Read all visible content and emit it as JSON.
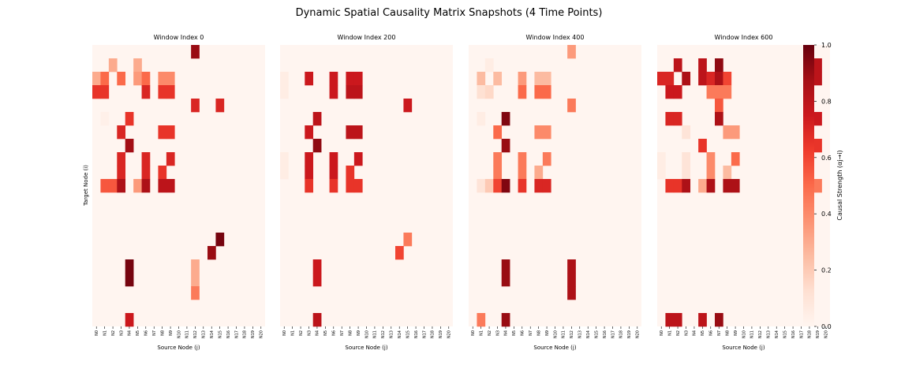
{
  "chart_data": {
    "type": "heatmap",
    "title": "Dynamic Spatial Causality Matrix Snapshots (4 Time Points)",
    "colormap": "Reds",
    "vmin": 0.0,
    "vmax": 1.0,
    "xticks": [
      "N0",
      "N1",
      "N2",
      "N3",
      "N4",
      "N5",
      "N6",
      "N7",
      "N8",
      "N9",
      "N10",
      "N11",
      "N12",
      "N13",
      "N14",
      "N15",
      "N16",
      "N17",
      "N18",
      "N19",
      "N20"
    ],
    "n_rows": 21,
    "xlabel": "Source Node (j)",
    "ylabel": "Target Node (i)",
    "colorbar": {
      "label": "Causal Strength (αj→i)",
      "ticks": [
        "0.0",
        "0.2",
        "0.4",
        "0.6",
        "0.8",
        "1.0"
      ]
    },
    "panels": [
      {
        "title": "Window Index 0",
        "cells": [
          [
            0,
            12,
            0.9
          ],
          [
            1,
            2,
            0.3
          ],
          [
            1,
            5,
            0.3
          ],
          [
            2,
            0,
            0.3
          ],
          [
            2,
            1,
            0.5
          ],
          [
            2,
            3,
            0.5
          ],
          [
            2,
            5,
            0.35
          ],
          [
            2,
            6,
            0.5
          ],
          [
            2,
            8,
            0.4
          ],
          [
            2,
            9,
            0.4
          ],
          [
            3,
            0,
            0.65
          ],
          [
            3,
            1,
            0.65
          ],
          [
            3,
            6,
            0.7
          ],
          [
            3,
            8,
            0.65
          ],
          [
            3,
            9,
            0.65
          ],
          [
            4,
            12,
            0.7
          ],
          [
            4,
            15,
            0.7
          ],
          [
            5,
            1,
            0.03
          ],
          [
            5,
            4,
            0.65
          ],
          [
            6,
            3,
            0.7
          ],
          [
            6,
            8,
            0.65
          ],
          [
            6,
            9,
            0.65
          ],
          [
            7,
            4,
            0.88
          ],
          [
            8,
            3,
            0.7
          ],
          [
            8,
            6,
            0.7
          ],
          [
            8,
            9,
            0.7
          ],
          [
            9,
            3,
            0.7
          ],
          [
            9,
            6,
            0.7
          ],
          [
            9,
            8,
            0.65
          ],
          [
            10,
            1,
            0.55
          ],
          [
            10,
            2,
            0.55
          ],
          [
            10,
            3,
            0.85
          ],
          [
            10,
            5,
            0.35
          ],
          [
            10,
            6,
            0.85
          ],
          [
            10,
            8,
            0.8
          ],
          [
            10,
            9,
            0.8
          ],
          [
            14,
            15,
            0.97
          ],
          [
            15,
            14,
            0.9
          ],
          [
            16,
            4,
            0.97
          ],
          [
            16,
            12,
            0.3
          ],
          [
            17,
            4,
            0.97
          ],
          [
            17,
            12,
            0.3
          ],
          [
            18,
            12,
            0.45
          ],
          [
            20,
            4,
            0.75
          ]
        ]
      },
      {
        "title": "Window Index 200",
        "cells": [
          [
            2,
            0,
            0.05
          ],
          [
            2,
            3,
            0.75
          ],
          [
            2,
            6,
            0.75
          ],
          [
            2,
            8,
            0.75
          ],
          [
            2,
            9,
            0.75
          ],
          [
            3,
            0,
            0.05
          ],
          [
            3,
            6,
            0.75
          ],
          [
            3,
            8,
            0.8
          ],
          [
            3,
            9,
            0.8
          ],
          [
            4,
            15,
            0.75
          ],
          [
            5,
            4,
            0.8
          ],
          [
            6,
            3,
            0.75
          ],
          [
            6,
            8,
            0.8
          ],
          [
            6,
            9,
            0.8
          ],
          [
            7,
            4,
            0.92
          ],
          [
            8,
            0,
            0.05
          ],
          [
            8,
            3,
            0.75
          ],
          [
            8,
            6,
            0.75
          ],
          [
            8,
            9,
            0.75
          ],
          [
            9,
            0,
            0.05
          ],
          [
            9,
            3,
            0.75
          ],
          [
            9,
            6,
            0.75
          ],
          [
            9,
            8,
            0.65
          ],
          [
            10,
            3,
            0.65
          ],
          [
            10,
            6,
            0.65
          ],
          [
            10,
            8,
            0.65
          ],
          [
            10,
            9,
            0.65
          ],
          [
            14,
            15,
            0.45
          ],
          [
            15,
            14,
            0.6
          ],
          [
            16,
            4,
            0.75
          ],
          [
            17,
            4,
            0.75
          ],
          [
            20,
            4,
            0.8
          ]
        ]
      },
      {
        "title": "Window Index 400",
        "cells": [
          [
            0,
            12,
            0.35
          ],
          [
            1,
            2,
            0.05
          ],
          [
            2,
            1,
            0.25
          ],
          [
            2,
            3,
            0.25
          ],
          [
            2,
            6,
            0.35
          ],
          [
            2,
            8,
            0.25
          ],
          [
            2,
            9,
            0.25
          ],
          [
            3,
            1,
            0.12
          ],
          [
            3,
            2,
            0.15
          ],
          [
            3,
            6,
            0.5
          ],
          [
            3,
            8,
            0.5
          ],
          [
            3,
            9,
            0.5
          ],
          [
            4,
            12,
            0.45
          ],
          [
            5,
            1,
            0.05
          ],
          [
            5,
            4,
            0.95
          ],
          [
            6,
            3,
            0.5
          ],
          [
            6,
            8,
            0.4
          ],
          [
            6,
            9,
            0.4
          ],
          [
            7,
            4,
            0.9
          ],
          [
            8,
            3,
            0.45
          ],
          [
            8,
            6,
            0.45
          ],
          [
            8,
            9,
            0.45
          ],
          [
            9,
            3,
            0.45
          ],
          [
            9,
            6,
            0.45
          ],
          [
            9,
            8,
            0.3
          ],
          [
            10,
            1,
            0.1
          ],
          [
            10,
            2,
            0.2
          ],
          [
            10,
            3,
            0.6
          ],
          [
            10,
            4,
            0.95
          ],
          [
            10,
            6,
            0.65
          ],
          [
            10,
            8,
            0.7
          ],
          [
            10,
            9,
            0.7
          ],
          [
            16,
            4,
            0.9
          ],
          [
            16,
            12,
            0.85
          ],
          [
            17,
            4,
            0.9
          ],
          [
            17,
            12,
            0.85
          ],
          [
            18,
            12,
            0.85
          ],
          [
            20,
            1,
            0.45
          ],
          [
            20,
            4,
            0.9
          ]
        ]
      },
      {
        "title": "Window Index 600",
        "cells": [
          [
            1,
            2,
            0.8
          ],
          [
            1,
            5,
            0.8
          ],
          [
            1,
            7,
            0.92
          ],
          [
            1,
            19,
            0.8
          ],
          [
            2,
            0,
            0.7
          ],
          [
            2,
            1,
            0.7
          ],
          [
            2,
            3,
            0.85
          ],
          [
            2,
            5,
            0.8
          ],
          [
            2,
            6,
            0.7
          ],
          [
            2,
            7,
            0.85
          ],
          [
            2,
            8,
            0.6
          ],
          [
            2,
            19,
            0.8
          ],
          [
            3,
            1,
            0.75
          ],
          [
            3,
            2,
            0.75
          ],
          [
            3,
            6,
            0.45
          ],
          [
            3,
            7,
            0.45
          ],
          [
            3,
            8,
            0.45
          ],
          [
            4,
            7,
            0.55
          ],
          [
            5,
            1,
            0.7
          ],
          [
            5,
            2,
            0.7
          ],
          [
            5,
            7,
            0.85
          ],
          [
            5,
            19,
            0.75
          ],
          [
            6,
            3,
            0.1
          ],
          [
            6,
            8,
            0.35
          ],
          [
            6,
            9,
            0.35
          ],
          [
            7,
            5,
            0.65
          ],
          [
            7,
            19,
            0.65
          ],
          [
            8,
            0,
            0.05
          ],
          [
            8,
            3,
            0.1
          ],
          [
            8,
            6,
            0.4
          ],
          [
            8,
            9,
            0.5
          ],
          [
            9,
            0,
            0.05
          ],
          [
            9,
            3,
            0.1
          ],
          [
            9,
            6,
            0.4
          ],
          [
            9,
            8,
            0.25
          ],
          [
            10,
            1,
            0.65
          ],
          [
            10,
            2,
            0.65
          ],
          [
            10,
            3,
            0.85
          ],
          [
            10,
            5,
            0.3
          ],
          [
            10,
            6,
            0.85
          ],
          [
            10,
            8,
            0.85
          ],
          [
            10,
            9,
            0.85
          ],
          [
            10,
            19,
            0.45
          ],
          [
            20,
            1,
            0.8
          ],
          [
            20,
            2,
            0.8
          ],
          [
            20,
            5,
            0.8
          ],
          [
            20,
            7,
            0.9
          ]
        ]
      }
    ]
  }
}
